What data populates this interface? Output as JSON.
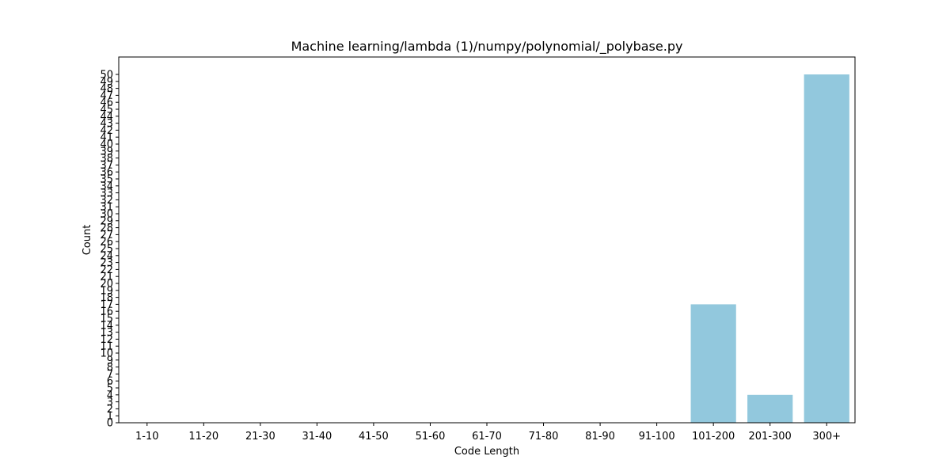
{
  "chart_data": {
    "type": "bar",
    "title": "Machine learning/lambda (1)/numpy/polynomial/_polybase.py",
    "xlabel": "Code Length",
    "ylabel": "Count",
    "categories": [
      "1-10",
      "11-20",
      "21-30",
      "31-40",
      "41-50",
      "51-60",
      "61-70",
      "71-80",
      "81-90",
      "91-100",
      "101-200",
      "201-300",
      "300+"
    ],
    "values": [
      0,
      0,
      0,
      0,
      0,
      0,
      0,
      0,
      0,
      0,
      17,
      4,
      50
    ],
    "ylim": [
      0,
      52.5
    ],
    "yticks": [
      0,
      1,
      2,
      3,
      4,
      5,
      6,
      7,
      8,
      9,
      10,
      11,
      12,
      13,
      14,
      15,
      16,
      17,
      18,
      19,
      20,
      21,
      22,
      23,
      24,
      25,
      26,
      27,
      28,
      29,
      30,
      31,
      32,
      33,
      34,
      35,
      36,
      37,
      38,
      39,
      40,
      41,
      42,
      43,
      44,
      45,
      46,
      47,
      48,
      49,
      50
    ],
    "grid": false,
    "colors": {
      "bar": "#92c8dd",
      "axis": "#000000"
    }
  }
}
